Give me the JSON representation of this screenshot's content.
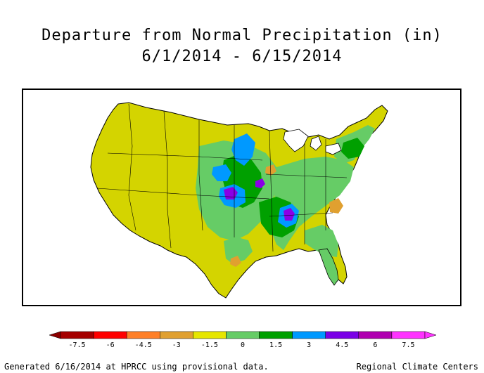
{
  "title": {
    "line1": "Departure from Normal Precipitation (in)",
    "line2": "6/1/2014 - 6/15/2014"
  },
  "legend": {
    "ticks": [
      "-7.5",
      "-6",
      "-4.5",
      "-3",
      "-1.5",
      "0",
      "1.5",
      "3",
      "4.5",
      "6",
      "7.5"
    ],
    "colors": [
      "#a50000",
      "#ff0000",
      "#ff7f27",
      "#e0a030",
      "#e6e600",
      "#66cc66",
      "#00a000",
      "#0099ff",
      "#7a00e6",
      "#b000b0",
      "#ff33ff"
    ],
    "left_arrow_color": "#8b0000",
    "right_arrow_color": "#ff33ff"
  },
  "map": {
    "dominant_color": "#d4d400",
    "wet_color": "#66cc66",
    "very_wet_color": "#00a000",
    "extreme_wet_color": "#0099ff",
    "max_wet_color": "#8a00e6",
    "dry_color": "#e0a030"
  },
  "footer": {
    "left": "Generated 6/16/2014 at HPRCC using provisional data.",
    "right": "Regional Climate Centers"
  }
}
